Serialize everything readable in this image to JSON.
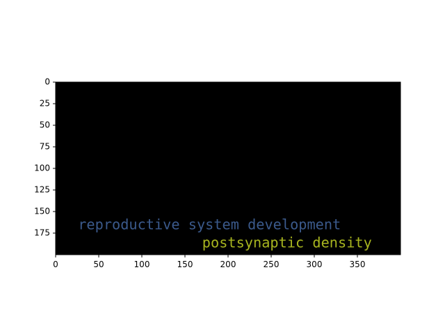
{
  "chart_data": {
    "type": "image",
    "title": "",
    "xlabel": "",
    "ylabel": "",
    "xlim": [
      0,
      400
    ],
    "ylim": [
      200,
      0
    ],
    "x_ticks": [
      0,
      50,
      100,
      150,
      200,
      250,
      300,
      350
    ],
    "y_ticks": [
      0,
      25,
      50,
      75,
      100,
      125,
      150,
      175
    ],
    "background_color": "#000000",
    "grid": false,
    "annotations": [
      {
        "text": "reproductive system development",
        "x": 26,
        "y": 166,
        "color": "#3b5a8c"
      },
      {
        "text": "postsynaptic density",
        "x": 170,
        "y": 187,
        "color": "#a8b51f"
      }
    ]
  }
}
